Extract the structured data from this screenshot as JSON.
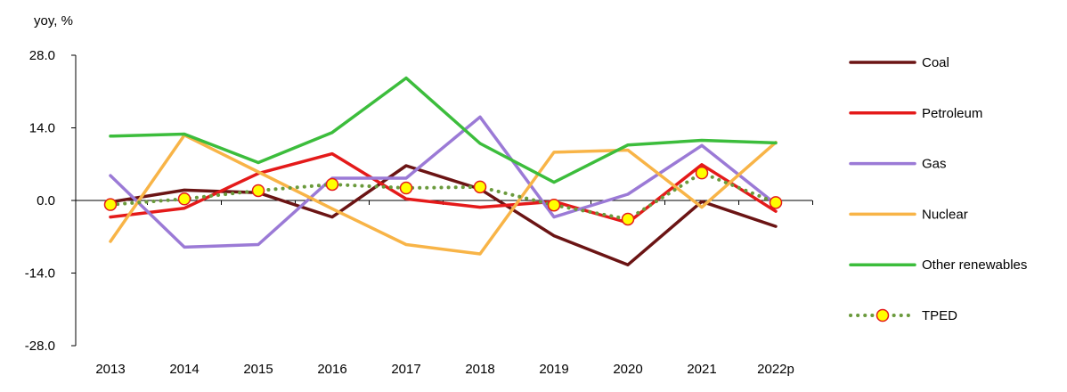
{
  "chart_data": {
    "type": "line",
    "title": "",
    "xlabel": "",
    "ylabel": "yoy, %",
    "ylim": [
      -28,
      28
    ],
    "y_ticks": [
      "28.0",
      "14.0",
      "0.0",
      "-14.0",
      "-28.0"
    ],
    "categories": [
      "2013",
      "2014",
      "2015",
      "2016",
      "2017",
      "2018",
      "2019",
      "2020",
      "2021",
      "2022p"
    ],
    "legend_position": "right",
    "grid": false,
    "series": [
      {
        "name": "Coal",
        "color": "#6b1414",
        "style": "solid",
        "values": [
          -0.3,
          2.0,
          1.5,
          -3.2,
          6.7,
          2.2,
          -6.8,
          -12.4,
          -0.2,
          -5.0
        ]
      },
      {
        "name": "Petroleum",
        "color": "#e41a1a",
        "style": "solid",
        "values": [
          -3.2,
          -1.5,
          5.2,
          9.0,
          0.3,
          -1.3,
          -0.2,
          -4.3,
          6.9,
          -2.1
        ]
      },
      {
        "name": "Gas",
        "color": "#9b7ad6",
        "style": "solid",
        "values": [
          4.8,
          -9.0,
          -8.5,
          4.3,
          4.3,
          16.1,
          -3.2,
          1.2,
          10.6,
          -0.7
        ]
      },
      {
        "name": "Nuclear",
        "color": "#f8b447",
        "style": "solid",
        "values": [
          -7.9,
          12.6,
          5.5,
          -1.6,
          -8.5,
          -10.3,
          9.3,
          9.7,
          -1.3,
          11.2
        ]
      },
      {
        "name": "Other renewables",
        "color": "#3cbd3c",
        "style": "solid",
        "values": [
          12.4,
          12.8,
          7.3,
          13.1,
          23.6,
          11.0,
          3.5,
          10.7,
          11.6,
          11.1
        ]
      },
      {
        "name": "TPED",
        "color": "#6a9a3c",
        "style": "dotted",
        "marker": "circle",
        "marker_fill": "#ffff00",
        "marker_edge": "#e41a1a",
        "values": [
          -0.8,
          0.3,
          1.9,
          3.1,
          2.4,
          2.6,
          -0.9,
          -3.6,
          5.3,
          -0.4
        ]
      }
    ]
  }
}
